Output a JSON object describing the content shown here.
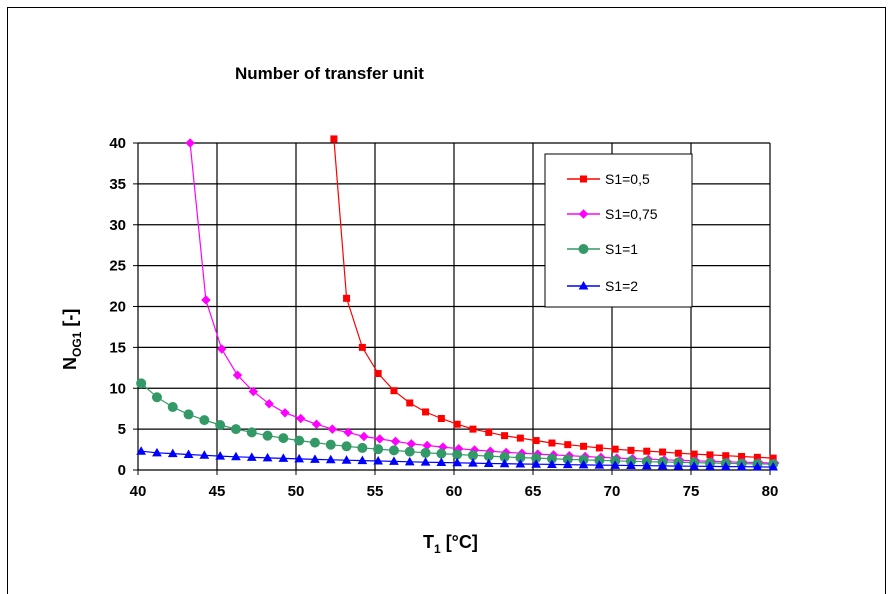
{
  "chart_data": {
    "type": "line",
    "title": "Number of transfer unit",
    "xlabel": {
      "main": "T",
      "sub": "1",
      "rest": " [°C]"
    },
    "ylabel": {
      "main": "N",
      "sub": "OG1",
      "rest": " [-]"
    },
    "xlim": [
      40,
      80
    ],
    "ylim": [
      0,
      40
    ],
    "xticks": [
      40,
      45,
      50,
      55,
      60,
      65,
      70,
      75,
      80
    ],
    "yticks": [
      0,
      5,
      10,
      15,
      20,
      25,
      30,
      35,
      40
    ],
    "grid": true,
    "legend_position": "top-right",
    "series": [
      {
        "name": "S1=0,5",
        "color": "#ff0000",
        "marker": "square",
        "x": [
          52.4,
          53.2,
          54.2,
          55.2,
          56.2,
          57.2,
          58.2,
          59.2,
          60.2,
          61.2,
          62.2,
          63.2,
          64.2,
          65.2,
          66.2,
          67.2,
          68.2,
          69.2,
          70.2,
          71.2,
          72.2,
          73.2,
          74.2,
          75.2,
          76.2,
          77.2,
          78.2,
          79.2,
          80.2
        ],
        "y": [
          40.5,
          21,
          15,
          11.8,
          9.7,
          8.2,
          7.1,
          6.3,
          5.6,
          5.0,
          4.6,
          4.2,
          3.9,
          3.6,
          3.3,
          3.1,
          2.9,
          2.7,
          2.55,
          2.4,
          2.3,
          2.2,
          2.05,
          1.95,
          1.85,
          1.75,
          1.65,
          1.55,
          1.45
        ]
      },
      {
        "name": "S1=0,75",
        "color": "#ff00ff",
        "marker": "diamond",
        "x": [
          43.3,
          44.3,
          45.3,
          46.3,
          47.3,
          48.3,
          49.3,
          50.3,
          51.3,
          52.3,
          53.3,
          54.3,
          55.3,
          56.3,
          57.3,
          58.3,
          59.3,
          60.3,
          61.3,
          62.3,
          63.3,
          64.3,
          65.3,
          66.3,
          67.3,
          68.3,
          69.3,
          70.3,
          71.3,
          72.3,
          73.3,
          74.3,
          75.3,
          76.3,
          77.3,
          78.3,
          79.3,
          80.3
        ],
        "y": [
          40,
          20.8,
          14.8,
          11.6,
          9.6,
          8.1,
          7.0,
          6.3,
          5.6,
          5.0,
          4.6,
          4.1,
          3.8,
          3.5,
          3.2,
          3.0,
          2.8,
          2.6,
          2.45,
          2.3,
          2.15,
          2.05,
          1.95,
          1.85,
          1.75,
          1.65,
          1.55,
          1.45,
          1.4,
          1.32,
          1.25,
          1.18,
          1.12,
          1.05,
          1.0,
          0.95,
          0.9,
          0.85
        ]
      },
      {
        "name": "S1=1",
        "color": "#339966",
        "marker": "circle",
        "x": [
          40.2,
          41.2,
          42.2,
          43.2,
          44.2,
          45.2,
          46.2,
          47.2,
          48.2,
          49.2,
          50.2,
          51.2,
          52.2,
          53.2,
          54.2,
          55.2,
          56.2,
          57.2,
          58.2,
          59.2,
          60.2,
          61.2,
          62.2,
          63.2,
          64.2,
          65.2,
          66.2,
          67.2,
          68.2,
          69.2,
          70.2,
          71.2,
          72.2,
          73.2,
          74.2,
          75.2,
          76.2,
          77.2,
          78.2,
          79.2,
          80.2
        ],
        "y": [
          10.6,
          8.9,
          7.7,
          6.8,
          6.1,
          5.5,
          5.0,
          4.6,
          4.2,
          3.9,
          3.6,
          3.35,
          3.1,
          2.9,
          2.7,
          2.55,
          2.4,
          2.25,
          2.1,
          2.0,
          1.9,
          1.8,
          1.7,
          1.6,
          1.52,
          1.45,
          1.38,
          1.3,
          1.25,
          1.18,
          1.12,
          1.07,
          1.02,
          0.98,
          0.94,
          0.9,
          0.86,
          0.82,
          0.78,
          0.75,
          0.72
        ]
      },
      {
        "name": "S1=2",
        "color": "#0000ff",
        "marker": "triangle",
        "x": [
          40.2,
          41.2,
          42.2,
          43.2,
          44.2,
          45.2,
          46.2,
          47.2,
          48.2,
          49.2,
          50.2,
          51.2,
          52.2,
          53.2,
          54.2,
          55.2,
          56.2,
          57.2,
          58.2,
          59.2,
          60.2,
          61.2,
          62.2,
          63.2,
          64.2,
          65.2,
          66.2,
          67.2,
          68.2,
          69.2,
          70.2,
          71.2,
          72.2,
          73.2,
          74.2,
          75.2,
          76.2,
          77.2,
          78.2,
          79.2,
          80.2
        ],
        "y": [
          2.3,
          2.1,
          2.0,
          1.9,
          1.8,
          1.7,
          1.62,
          1.55,
          1.48,
          1.42,
          1.36,
          1.3,
          1.25,
          1.2,
          1.15,
          1.1,
          1.05,
          1.0,
          0.96,
          0.92,
          0.88,
          0.84,
          0.8,
          0.77,
          0.74,
          0.71,
          0.68,
          0.65,
          0.62,
          0.6,
          0.57,
          0.55,
          0.52,
          0.5,
          0.48,
          0.46,
          0.44,
          0.42,
          0.4,
          0.38,
          0.36
        ]
      }
    ]
  }
}
